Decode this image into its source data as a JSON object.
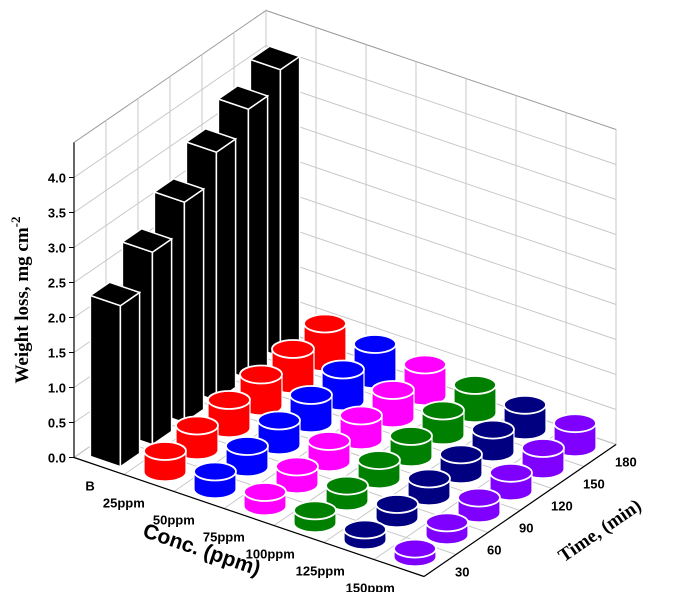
{
  "chart_data": {
    "type": "bar3d",
    "x_label": "Conc. (ppm)",
    "z_label_lead": "Weight loss, mg cm",
    "z_label_sup": "-2",
    "y_label": "Time, (min)",
    "categories": [
      30,
      60,
      90,
      120,
      150,
      180
    ],
    "series": [
      {
        "name": "B",
        "color": "#000000",
        "values": [
          2.3,
          2.75,
          3.15,
          3.55,
          3.85,
          4.1
        ]
      },
      {
        "name": "25ppm",
        "color": "#ff0000",
        "values": [
          0.3,
          0.35,
          0.4,
          0.45,
          0.5,
          0.55
        ]
      },
      {
        "name": "50ppm",
        "color": "#0000ff",
        "values": [
          0.25,
          0.3,
          0.35,
          0.4,
          0.45,
          0.5
        ]
      },
      {
        "name": "75ppm",
        "color": "#ff00ff",
        "values": [
          0.2,
          0.25,
          0.3,
          0.35,
          0.4,
          0.45
        ]
      },
      {
        "name": "100ppm",
        "color": "#008000",
        "values": [
          0.18,
          0.22,
          0.27,
          0.3,
          0.35,
          0.4
        ]
      },
      {
        "name": "125ppm",
        "color": "#000080",
        "values": [
          0.15,
          0.2,
          0.25,
          0.28,
          0.32,
          0.36
        ]
      },
      {
        "name": "150ppm",
        "color": "#8000ff",
        "values": [
          0.12,
          0.18,
          0.22,
          0.26,
          0.3,
          0.34
        ]
      }
    ],
    "ylim": [
      0,
      4.5
    ],
    "yticks": [
      {
        "value": 0,
        "label": "0.0"
      },
      0.5,
      {
        "value": 1,
        "label": "1.0"
      },
      1.5,
      {
        "value": 2,
        "label": "2.0"
      },
      2.5,
      {
        "value": 3,
        "label": "3.0"
      },
      3.5,
      {
        "value": 4,
        "label": "4.0"
      }
    ],
    "grid": true
  }
}
